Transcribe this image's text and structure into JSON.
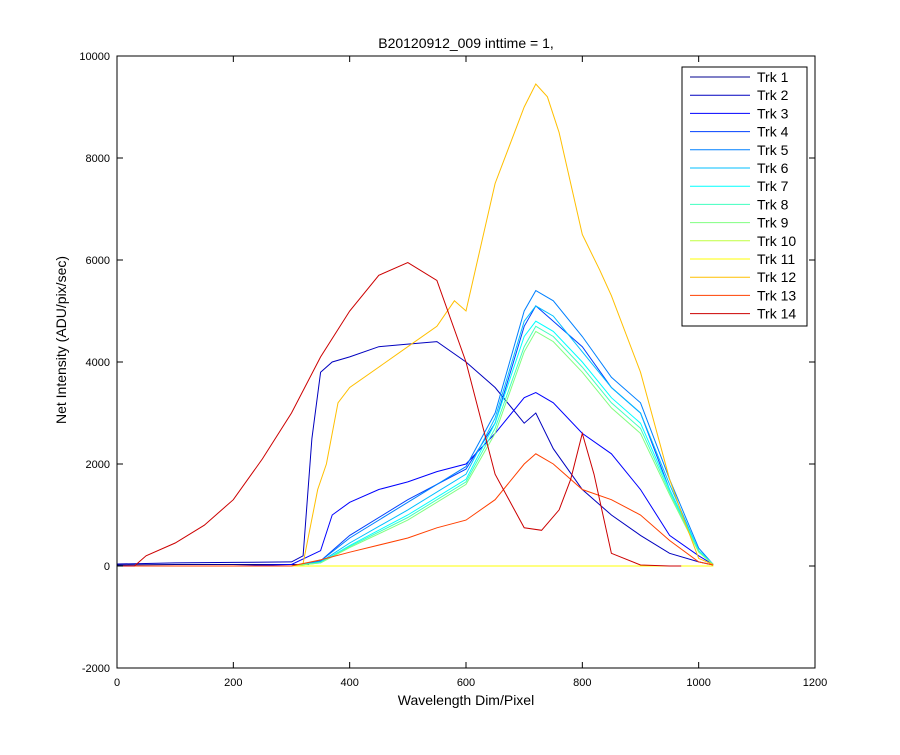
{
  "chart_data": {
    "type": "line",
    "title": "B20120912_009 inttime = 1,",
    "xlabel": "Wavelength Dim/Pixel",
    "ylabel": "Net Intensity (ADU/pix/sec)",
    "xlim": [
      0,
      1200
    ],
    "ylim": [
      -2000,
      10000
    ],
    "xticks": [
      0,
      200,
      400,
      600,
      800,
      1000,
      1200
    ],
    "yticks": [
      -2000,
      0,
      2000,
      4000,
      6000,
      8000,
      10000
    ],
    "xtick_labels": [
      "0",
      "200",
      "400",
      "600",
      "800",
      "1000",
      "1200"
    ],
    "ytick_labels": [
      "-2000",
      "0",
      "2000",
      "4000",
      "6000",
      "8000",
      "10000"
    ],
    "grid": false,
    "legend_position": "top-right",
    "series": [
      {
        "name": "Trk 1",
        "color": "#00008F",
        "x": [
          0,
          50,
          100,
          200,
          300,
          330
        ],
        "y": [
          20,
          25,
          30,
          30,
          30,
          30
        ]
      },
      {
        "name": "Trk 2",
        "color": "#0000BF",
        "x": [
          0,
          50,
          100,
          200,
          300,
          320,
          335,
          350,
          370,
          400,
          450,
          500,
          550,
          600,
          650,
          700,
          720,
          750,
          800,
          850,
          900,
          950,
          1000,
          1025
        ],
        "y": [
          40,
          50,
          60,
          70,
          80,
          200,
          2500,
          3800,
          4000,
          4100,
          4300,
          4350,
          4400,
          4000,
          3500,
          2800,
          3000,
          2300,
          1500,
          1000,
          600,
          250,
          80,
          20
        ]
      },
      {
        "name": "Trk 3",
        "color": "#0000FF",
        "x": [
          0,
          200,
          300,
          350,
          370,
          400,
          450,
          500,
          550,
          600,
          650,
          700,
          720,
          750,
          800,
          850,
          900,
          950,
          1000,
          1025
        ],
        "y": [
          0,
          0,
          30,
          300,
          1000,
          1250,
          1500,
          1650,
          1850,
          2000,
          2600,
          3300,
          3400,
          3200,
          2600,
          2200,
          1500,
          600,
          200,
          30
        ]
      },
      {
        "name": "Trk 4",
        "color": "#0040FF",
        "x": [
          0,
          300,
          350,
          400,
          500,
          600,
          650,
          700,
          720,
          750,
          800,
          850,
          900,
          950,
          1000,
          1025
        ],
        "y": [
          0,
          0,
          100,
          600,
          1300,
          1900,
          2800,
          4700,
          5100,
          4800,
          4300,
          3500,
          3000,
          1500,
          300,
          30
        ]
      },
      {
        "name": "Trk 5",
        "color": "#0080FF",
        "x": [
          0,
          300,
          350,
          400,
          500,
          600,
          650,
          700,
          720,
          750,
          800,
          850,
          900,
          950,
          1000,
          1025
        ],
        "y": [
          0,
          0,
          100,
          550,
          1250,
          1950,
          3000,
          5000,
          5400,
          5200,
          4500,
          3700,
          3200,
          1700,
          350,
          30
        ]
      },
      {
        "name": "Trk 6",
        "color": "#00BFFF",
        "x": [
          0,
          300,
          350,
          400,
          500,
          600,
          650,
          700,
          720,
          750,
          800,
          850,
          900,
          950,
          1000,
          1025
        ],
        "y": [
          0,
          0,
          80,
          450,
          1100,
          1800,
          2900,
          4800,
          5100,
          4900,
          4200,
          3500,
          3000,
          1600,
          300,
          30
        ]
      },
      {
        "name": "Trk 7",
        "color": "#00FFFF",
        "x": [
          0,
          300,
          350,
          400,
          500,
          600,
          650,
          700,
          720,
          750,
          800,
          850,
          900,
          950,
          1000,
          1025
        ],
        "y": [
          0,
          0,
          70,
          400,
          1000,
          1700,
          2800,
          4500,
          4800,
          4600,
          4000,
          3300,
          2800,
          1500,
          300,
          30
        ]
      },
      {
        "name": "Trk 8",
        "color": "#40FFBF",
        "x": [
          0,
          300,
          350,
          400,
          500,
          600,
          650,
          700,
          720,
          750,
          800,
          850,
          900,
          950,
          1000,
          1025
        ],
        "y": [
          0,
          0,
          60,
          380,
          950,
          1650,
          2700,
          4300,
          4700,
          4500,
          3900,
          3200,
          2700,
          1450,
          280,
          30
        ]
      },
      {
        "name": "Trk 9",
        "color": "#80FF80",
        "x": [
          0,
          300,
          350,
          400,
          500,
          600,
          650,
          700,
          720,
          750,
          800,
          850,
          900,
          950,
          1000,
          1025
        ],
        "y": [
          0,
          0,
          60,
          360,
          900,
          1600,
          2600,
          4200,
          4600,
          4400,
          3800,
          3100,
          2600,
          1400,
          270,
          30
        ]
      },
      {
        "name": "Trk 10",
        "color": "#BFFF40",
        "x": [
          0,
          1025
        ],
        "y": [
          0,
          0
        ]
      },
      {
        "name": "Trk 11",
        "color": "#FFFF00",
        "x": [
          0,
          1025
        ],
        "y": [
          0,
          0
        ]
      },
      {
        "name": "Trk 12",
        "color": "#FFBF00",
        "x": [
          0,
          300,
          320,
          345,
          360,
          380,
          400,
          450,
          500,
          550,
          580,
          600,
          620,
          650,
          700,
          720,
          740,
          760,
          800,
          830,
          850,
          900,
          950,
          975,
          1000,
          1025
        ],
        "y": [
          0,
          0,
          50,
          1500,
          2000,
          3200,
          3500,
          3900,
          4300,
          4700,
          5200,
          5000,
          6000,
          7500,
          9000,
          9450,
          9200,
          8500,
          6500,
          5800,
          5300,
          3800,
          1700,
          900,
          150,
          30
        ]
      },
      {
        "name": "Trk 13",
        "color": "#FF4000",
        "x": [
          0,
          300,
          350,
          400,
          500,
          550,
          600,
          650,
          700,
          720,
          750,
          800,
          850,
          900,
          950,
          1000,
          1025
        ],
        "y": [
          0,
          0,
          120,
          270,
          550,
          750,
          900,
          1300,
          2000,
          2200,
          2000,
          1500,
          1300,
          1000,
          500,
          80,
          20
        ]
      },
      {
        "name": "Trk 14",
        "color": "#CC0000",
        "x": [
          0,
          30,
          50,
          100,
          150,
          200,
          250,
          300,
          350,
          400,
          450,
          500,
          550,
          600,
          650,
          700,
          730,
          760,
          780,
          800,
          820,
          850,
          900,
          950,
          970
        ],
        "y": [
          0,
          0,
          200,
          450,
          800,
          1300,
          2100,
          3000,
          4100,
          5000,
          5700,
          5950,
          5600,
          4000,
          1800,
          750,
          700,
          1100,
          1700,
          2600,
          1800,
          250,
          20,
          0,
          0
        ]
      }
    ]
  }
}
